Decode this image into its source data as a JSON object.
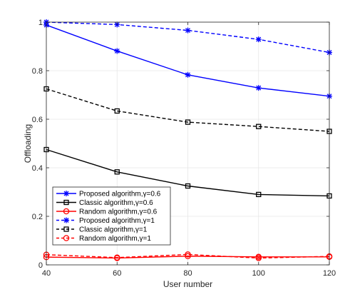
{
  "chart_data": {
    "type": "line",
    "xlabel": "User number",
    "ylabel": "Offloading",
    "x": [
      40,
      60,
      80,
      100,
      120
    ],
    "xlim": [
      40,
      120
    ],
    "ylim": [
      0,
      1
    ],
    "xticks": [
      "40",
      "60",
      "80",
      "100",
      "120"
    ],
    "yticks": [
      "0",
      "0.2",
      "0.4",
      "0.6",
      "0.8",
      "1"
    ],
    "grid": true,
    "legend_position": "bottom-left",
    "series": [
      {
        "name": "Proposed algorithm,γ=0.6",
        "values": [
          0.988,
          0.881,
          0.783,
          0.729,
          0.695
        ],
        "color": "#0000ff",
        "dash": "solid",
        "marker": "star"
      },
      {
        "name": "Classic algorithm,γ=0.6",
        "values": [
          0.475,
          0.383,
          0.325,
          0.29,
          0.284
        ],
        "color": "#000000",
        "dash": "solid",
        "marker": "square"
      },
      {
        "name": "Random algorithm,γ=0.6",
        "values": [
          0.032,
          0.028,
          0.036,
          0.033,
          0.033
        ],
        "color": "#ff0000",
        "dash": "solid",
        "marker": "circle"
      },
      {
        "name": "Proposed algorithm,γ=1",
        "values": [
          1.0,
          0.99,
          0.966,
          0.929,
          0.875
        ],
        "color": "#0000ff",
        "dash": "dashed",
        "marker": "star"
      },
      {
        "name": "Classic algorithm,γ=1",
        "values": [
          0.725,
          0.634,
          0.588,
          0.57,
          0.55
        ],
        "color": "#000000",
        "dash": "dashed",
        "marker": "square"
      },
      {
        "name": "Random algorithm,γ=1",
        "values": [
          0.042,
          0.03,
          0.043,
          0.028,
          0.035
        ],
        "color": "#ff0000",
        "dash": "dashed",
        "marker": "circle"
      }
    ]
  }
}
